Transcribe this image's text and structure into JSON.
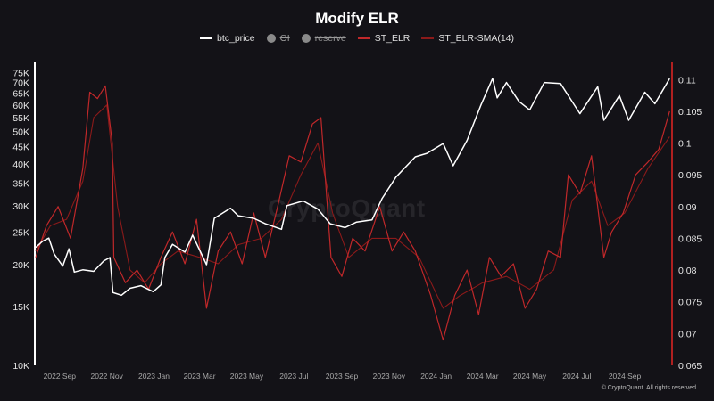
{
  "chart_data": {
    "type": "line",
    "title": "Modify ELR",
    "legend": {
      "placement": "top-center",
      "items": [
        {
          "label": "btc_price",
          "color": "#ffffff",
          "style": "line",
          "visible": true
        },
        {
          "label": "OI",
          "color": "#8a8a8a",
          "style": "dot",
          "visible": false
        },
        {
          "label": "reserve",
          "color": "#8a8a8a",
          "style": "dot",
          "visible": false
        },
        {
          "label": "ST_ELR",
          "color": "#c0282a",
          "style": "line",
          "visible": true
        },
        {
          "label": "ST_ELR-SMA(14)",
          "color": "#8b1a1a",
          "style": "line",
          "visible": true
        }
      ]
    },
    "y_left": {
      "scale": "log",
      "ylim": [
        10000,
        78000
      ],
      "ticks": [
        10000,
        15000,
        20000,
        25000,
        30000,
        35000,
        40000,
        45000,
        50000,
        55000,
        60000,
        65000,
        70000,
        75000
      ],
      "tick_labels": [
        "10K",
        "15K",
        "20K",
        "25K",
        "30K",
        "35K",
        "40K",
        "45K",
        "50K",
        "55K",
        "60K",
        "65K",
        "70K",
        "75K"
      ]
    },
    "y_right": {
      "scale": "linear",
      "ylim": [
        0.065,
        0.112
      ],
      "ticks": [
        0.065,
        0.07,
        0.075,
        0.08,
        0.085,
        0.09,
        0.095,
        0.1,
        0.105,
        0.11
      ],
      "tick_labels": [
        "0.065",
        "0.07",
        "0.075",
        "0.08",
        "0.085",
        "0.09",
        "0.095",
        "0.1",
        "0.105",
        "0.11"
      ]
    },
    "x": {
      "type": "date",
      "range": [
        "2022-08-01",
        "2024-10-31"
      ],
      "ticks": [
        "2022-09-01",
        "2022-11-01",
        "2023-01-01",
        "2023-03-01",
        "2023-05-01",
        "2023-07-01",
        "2023-09-01",
        "2023-11-01",
        "2024-01-01",
        "2024-03-01",
        "2024-05-01",
        "2024-07-01",
        "2024-09-01"
      ],
      "tick_labels": [
        "2022 Sep",
        "2022 Nov",
        "2023 Jan",
        "2023 Mar",
        "2023 May",
        "2023 Jul",
        "2023 Sep",
        "2023 Nov",
        "2024 Jan",
        "2024 Mar",
        "2024 May",
        "2024 Jul",
        "2024 Sep"
      ]
    },
    "grid": false,
    "series": [
      {
        "name": "btc_price",
        "axis": "left",
        "color": "#ffffff",
        "points": [
          [
            "2022-08-01",
            22500
          ],
          [
            "2022-08-10",
            23500
          ],
          [
            "2022-08-18",
            24000
          ],
          [
            "2022-08-25",
            21500
          ],
          [
            "2022-09-05",
            19800
          ],
          [
            "2022-09-13",
            22300
          ],
          [
            "2022-09-20",
            19000
          ],
          [
            "2022-10-01",
            19300
          ],
          [
            "2022-10-15",
            19100
          ],
          [
            "2022-10-28",
            20500
          ],
          [
            "2022-11-05",
            21000
          ],
          [
            "2022-11-09",
            16500
          ],
          [
            "2022-11-20",
            16200
          ],
          [
            "2022-12-01",
            17000
          ],
          [
            "2022-12-15",
            17300
          ],
          [
            "2022-12-31",
            16600
          ],
          [
            "2023-01-10",
            17400
          ],
          [
            "2023-01-15",
            21000
          ],
          [
            "2023-01-25",
            23000
          ],
          [
            "2023-02-10",
            21800
          ],
          [
            "2023-02-20",
            24500
          ],
          [
            "2023-03-10",
            20000
          ],
          [
            "2023-03-20",
            27500
          ],
          [
            "2023-04-10",
            29500
          ],
          [
            "2023-04-20",
            28000
          ],
          [
            "2023-05-10",
            27500
          ],
          [
            "2023-05-25",
            26500
          ],
          [
            "2023-06-15",
            25500
          ],
          [
            "2023-06-22",
            30000
          ],
          [
            "2023-07-13",
            31000
          ],
          [
            "2023-08-01",
            29300
          ],
          [
            "2023-08-17",
            26500
          ],
          [
            "2023-09-05",
            25800
          ],
          [
            "2023-09-20",
            26800
          ],
          [
            "2023-10-10",
            27200
          ],
          [
            "2023-10-23",
            31500
          ],
          [
            "2023-11-10",
            36500
          ],
          [
            "2023-12-05",
            42000
          ],
          [
            "2023-12-20",
            43000
          ],
          [
            "2024-01-10",
            46000
          ],
          [
            "2024-01-23",
            39500
          ],
          [
            "2024-02-10",
            47000
          ],
          [
            "2024-02-28",
            60000
          ],
          [
            "2024-03-14",
            72000
          ],
          [
            "2024-03-20",
            63000
          ],
          [
            "2024-04-01",
            70000
          ],
          [
            "2024-04-17",
            61500
          ],
          [
            "2024-05-01",
            58000
          ],
          [
            "2024-05-20",
            70000
          ],
          [
            "2024-06-10",
            69500
          ],
          [
            "2024-07-05",
            56500
          ],
          [
            "2024-07-28",
            68000
          ],
          [
            "2024-08-05",
            54000
          ],
          [
            "2024-08-25",
            64000
          ],
          [
            "2024-09-06",
            54000
          ],
          [
            "2024-09-27",
            65500
          ],
          [
            "2024-10-10",
            60500
          ],
          [
            "2024-10-29",
            72000
          ]
        ]
      },
      {
        "name": "ST_ELR",
        "axis": "right",
        "color": "#c0282a",
        "points": [
          [
            "2022-08-01",
            0.082
          ],
          [
            "2022-08-15",
            0.087
          ],
          [
            "2022-08-30",
            0.09
          ],
          [
            "2022-09-15",
            0.085
          ],
          [
            "2022-10-01",
            0.096
          ],
          [
            "2022-10-10",
            0.108
          ],
          [
            "2022-10-20",
            0.107
          ],
          [
            "2022-10-30",
            0.109
          ],
          [
            "2022-11-08",
            0.1
          ],
          [
            "2022-11-10",
            0.082
          ],
          [
            "2022-11-25",
            0.078
          ],
          [
            "2022-12-10",
            0.08
          ],
          [
            "2022-12-25",
            0.077
          ],
          [
            "2023-01-10",
            0.082
          ],
          [
            "2023-01-25",
            0.086
          ],
          [
            "2023-02-10",
            0.081
          ],
          [
            "2023-02-25",
            0.088
          ],
          [
            "2023-03-10",
            0.074
          ],
          [
            "2023-03-25",
            0.083
          ],
          [
            "2023-04-10",
            0.086
          ],
          [
            "2023-04-25",
            0.081
          ],
          [
            "2023-05-10",
            0.089
          ],
          [
            "2023-05-25",
            0.082
          ],
          [
            "2023-06-10",
            0.09
          ],
          [
            "2023-06-25",
            0.098
          ],
          [
            "2023-07-10",
            0.097
          ],
          [
            "2023-07-25",
            0.103
          ],
          [
            "2023-08-05",
            0.104
          ],
          [
            "2023-08-18",
            0.082
          ],
          [
            "2023-09-01",
            0.079
          ],
          [
            "2023-09-15",
            0.085
          ],
          [
            "2023-10-01",
            0.083
          ],
          [
            "2023-10-20",
            0.09
          ],
          [
            "2023-11-05",
            0.083
          ],
          [
            "2023-11-20",
            0.086
          ],
          [
            "2023-12-05",
            0.083
          ],
          [
            "2023-12-25",
            0.076
          ],
          [
            "2024-01-10",
            0.069
          ],
          [
            "2024-01-25",
            0.076
          ],
          [
            "2024-02-10",
            0.08
          ],
          [
            "2024-02-25",
            0.073
          ],
          [
            "2024-03-10",
            0.082
          ],
          [
            "2024-03-25",
            0.079
          ],
          [
            "2024-04-10",
            0.081
          ],
          [
            "2024-04-25",
            0.074
          ],
          [
            "2024-05-10",
            0.077
          ],
          [
            "2024-05-25",
            0.083
          ],
          [
            "2024-06-10",
            0.082
          ],
          [
            "2024-06-20",
            0.095
          ],
          [
            "2024-07-05",
            0.092
          ],
          [
            "2024-07-20",
            0.098
          ],
          [
            "2024-08-05",
            0.082
          ],
          [
            "2024-08-15",
            0.086
          ],
          [
            "2024-08-30",
            0.089
          ],
          [
            "2024-09-15",
            0.095
          ],
          [
            "2024-10-01",
            0.097
          ],
          [
            "2024-10-15",
            0.099
          ],
          [
            "2024-10-29",
            0.105
          ]
        ]
      },
      {
        "name": "ST_ELR-SMA(14)",
        "axis": "right",
        "color": "#8b1a1a",
        "points": [
          [
            "2022-08-01",
            0.083
          ],
          [
            "2022-08-20",
            0.087
          ],
          [
            "2022-09-10",
            0.088
          ],
          [
            "2022-10-01",
            0.094
          ],
          [
            "2022-10-15",
            0.104
          ],
          [
            "2022-11-01",
            0.106
          ],
          [
            "2022-11-15",
            0.09
          ],
          [
            "2022-12-01",
            0.08
          ],
          [
            "2022-12-20",
            0.078
          ],
          [
            "2023-01-10",
            0.081
          ],
          [
            "2023-02-01",
            0.083
          ],
          [
            "2023-03-01",
            0.082
          ],
          [
            "2023-03-25",
            0.081
          ],
          [
            "2023-04-20",
            0.084
          ],
          [
            "2023-05-20",
            0.085
          ],
          [
            "2023-06-15",
            0.088
          ],
          [
            "2023-07-10",
            0.095
          ],
          [
            "2023-08-01",
            0.1
          ],
          [
            "2023-08-20",
            0.089
          ],
          [
            "2023-09-10",
            0.082
          ],
          [
            "2023-10-10",
            0.085
          ],
          [
            "2023-11-10",
            0.085
          ],
          [
            "2023-12-10",
            0.082
          ],
          [
            "2024-01-10",
            0.074
          ],
          [
            "2024-02-01",
            0.076
          ],
          [
            "2024-03-01",
            0.078
          ],
          [
            "2024-04-01",
            0.079
          ],
          [
            "2024-05-01",
            0.077
          ],
          [
            "2024-06-01",
            0.08
          ],
          [
            "2024-06-25",
            0.091
          ],
          [
            "2024-07-20",
            0.094
          ],
          [
            "2024-08-10",
            0.087
          ],
          [
            "2024-09-01",
            0.089
          ],
          [
            "2024-10-01",
            0.096
          ],
          [
            "2024-10-29",
            0.101
          ]
        ]
      }
    ]
  },
  "watermark": "CryptoQuant",
  "copyright": "© CryptoQuant. All rights reserved"
}
